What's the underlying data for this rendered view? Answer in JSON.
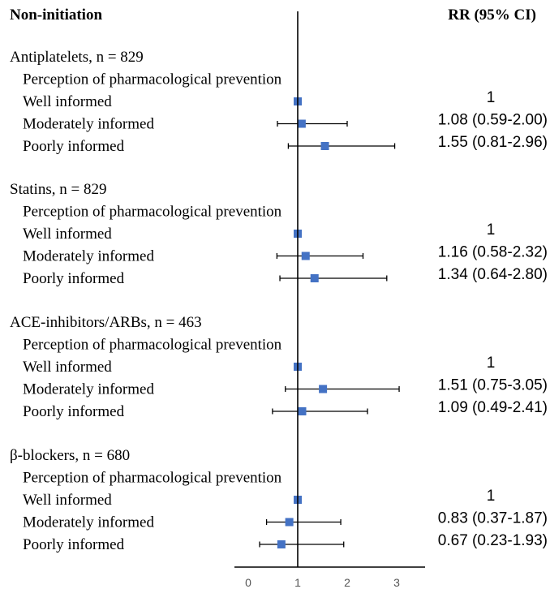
{
  "chart_data": {
    "type": "forest",
    "title": "Non-initiation",
    "rr_header": "RR (95% CI)",
    "reference_line": 1,
    "xlim": [
      0,
      3
    ],
    "x_ticks": [
      "0",
      "1",
      "2",
      "3"
    ],
    "marker_color": "#4472C4",
    "groups": [
      {
        "label": "Antiplatelets, n = 829",
        "subheader": "Perception of pharmacological prevention",
        "rows": [
          {
            "label": "Well informed",
            "rr": 1,
            "lo": 1,
            "hi": 1,
            "text": "1"
          },
          {
            "label": "Moderately informed",
            "rr": 1.08,
            "lo": 0.59,
            "hi": 2.0,
            "text": "1.08 (0.59-2.00)"
          },
          {
            "label": "Poorly informed",
            "rr": 1.55,
            "lo": 0.81,
            "hi": 2.96,
            "text": "1.55 (0.81-2.96)"
          }
        ]
      },
      {
        "label": "Statins, n = 829",
        "subheader": "Perception of pharmacological prevention",
        "rows": [
          {
            "label": "Well informed",
            "rr": 1,
            "lo": 1,
            "hi": 1,
            "text": "1"
          },
          {
            "label": "Moderately informed",
            "rr": 1.16,
            "lo": 0.58,
            "hi": 2.32,
            "text": "1.16 (0.58-2.32)"
          },
          {
            "label": "Poorly informed",
            "rr": 1.34,
            "lo": 0.64,
            "hi": 2.8,
            "text": "1.34 (0.64-2.80)"
          }
        ]
      },
      {
        "label": "ACE-inhibitors/ARBs, n = 463",
        "subheader": "Perception of pharmacological prevention",
        "rows": [
          {
            "label": "Well informed",
            "rr": 1,
            "lo": 1,
            "hi": 1,
            "text": "1"
          },
          {
            "label": "Moderately informed",
            "rr": 1.51,
            "lo": 0.75,
            "hi": 3.05,
            "text": "1.51 (0.75-3.05)"
          },
          {
            "label": "Poorly informed",
            "rr": 1.09,
            "lo": 0.49,
            "hi": 2.41,
            "text": "1.09 (0.49-2.41)"
          }
        ]
      },
      {
        "label": "β-blockers, n = 680",
        "subheader": "Perception of pharmacological prevention",
        "rows": [
          {
            "label": "Well informed",
            "rr": 1,
            "lo": 1,
            "hi": 1,
            "text": "1"
          },
          {
            "label": "Moderately informed",
            "rr": 0.83,
            "lo": 0.37,
            "hi": 1.87,
            "text": "0.83 (0.37-1.87)"
          },
          {
            "label": "Poorly informed",
            "rr": 0.67,
            "lo": 0.23,
            "hi": 1.93,
            "text": "0.67 (0.23-1.93)"
          }
        ]
      }
    ]
  }
}
